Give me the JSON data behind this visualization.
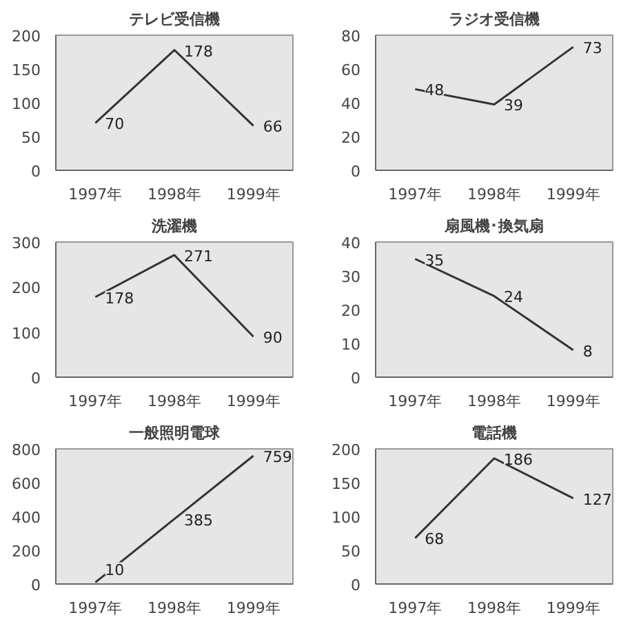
{
  "chart_data": [
    {
      "type": "line",
      "title": "テレビ受信機",
      "categories": [
        "1997年",
        "1998年",
        "1999年"
      ],
      "values": [
        70,
        178,
        66
      ],
      "color": "#333333",
      "ylim": [
        0,
        200
      ],
      "yticks": [
        0,
        50,
        100,
        150,
        200
      ],
      "data_labels": true,
      "grid": false,
      "legend": false
    },
    {
      "type": "line",
      "title": "ラジオ受信機",
      "categories": [
        "1997年",
        "1998年",
        "1999年"
      ],
      "values": [
        48,
        39,
        73
      ],
      "color": "#333333",
      "ylim": [
        0,
        80
      ],
      "yticks": [
        0,
        20,
        40,
        60,
        80
      ],
      "data_labels": true,
      "grid": false,
      "legend": false
    },
    {
      "type": "line",
      "title": "洗濯機",
      "categories": [
        "1997年",
        "1998年",
        "1999年"
      ],
      "values": [
        178,
        271,
        90
      ],
      "color": "#333333",
      "ylim": [
        0,
        300
      ],
      "yticks": [
        0,
        100,
        200,
        300
      ],
      "data_labels": true,
      "grid": false,
      "legend": false
    },
    {
      "type": "line",
      "title": "扇風機･換気扇",
      "categories": [
        "1997年",
        "1998年",
        "1999年"
      ],
      "values": [
        35,
        24,
        8
      ],
      "color": "#333333",
      "ylim": [
        0,
        40
      ],
      "yticks": [
        0,
        10,
        20,
        30,
        40
      ],
      "data_labels": true,
      "grid": false,
      "legend": false
    },
    {
      "type": "line",
      "title": "一般照明電球",
      "categories": [
        "1997年",
        "1998年",
        "1999年"
      ],
      "values": [
        10,
        385,
        759
      ],
      "color": "#333333",
      "ylim": [
        0,
        800
      ],
      "yticks": [
        0,
        200,
        400,
        600,
        800
      ],
      "data_labels": true,
      "grid": false,
      "legend": false
    },
    {
      "type": "line",
      "title": "電話機",
      "categories": [
        "1997年",
        "1998年",
        "1999年"
      ],
      "values": [
        68,
        186,
        127
      ],
      "color": "#333333",
      "ylim": [
        0,
        200
      ],
      "yticks": [
        0,
        50,
        100,
        150,
        200
      ],
      "data_labels": true,
      "grid": false,
      "legend": false
    }
  ]
}
